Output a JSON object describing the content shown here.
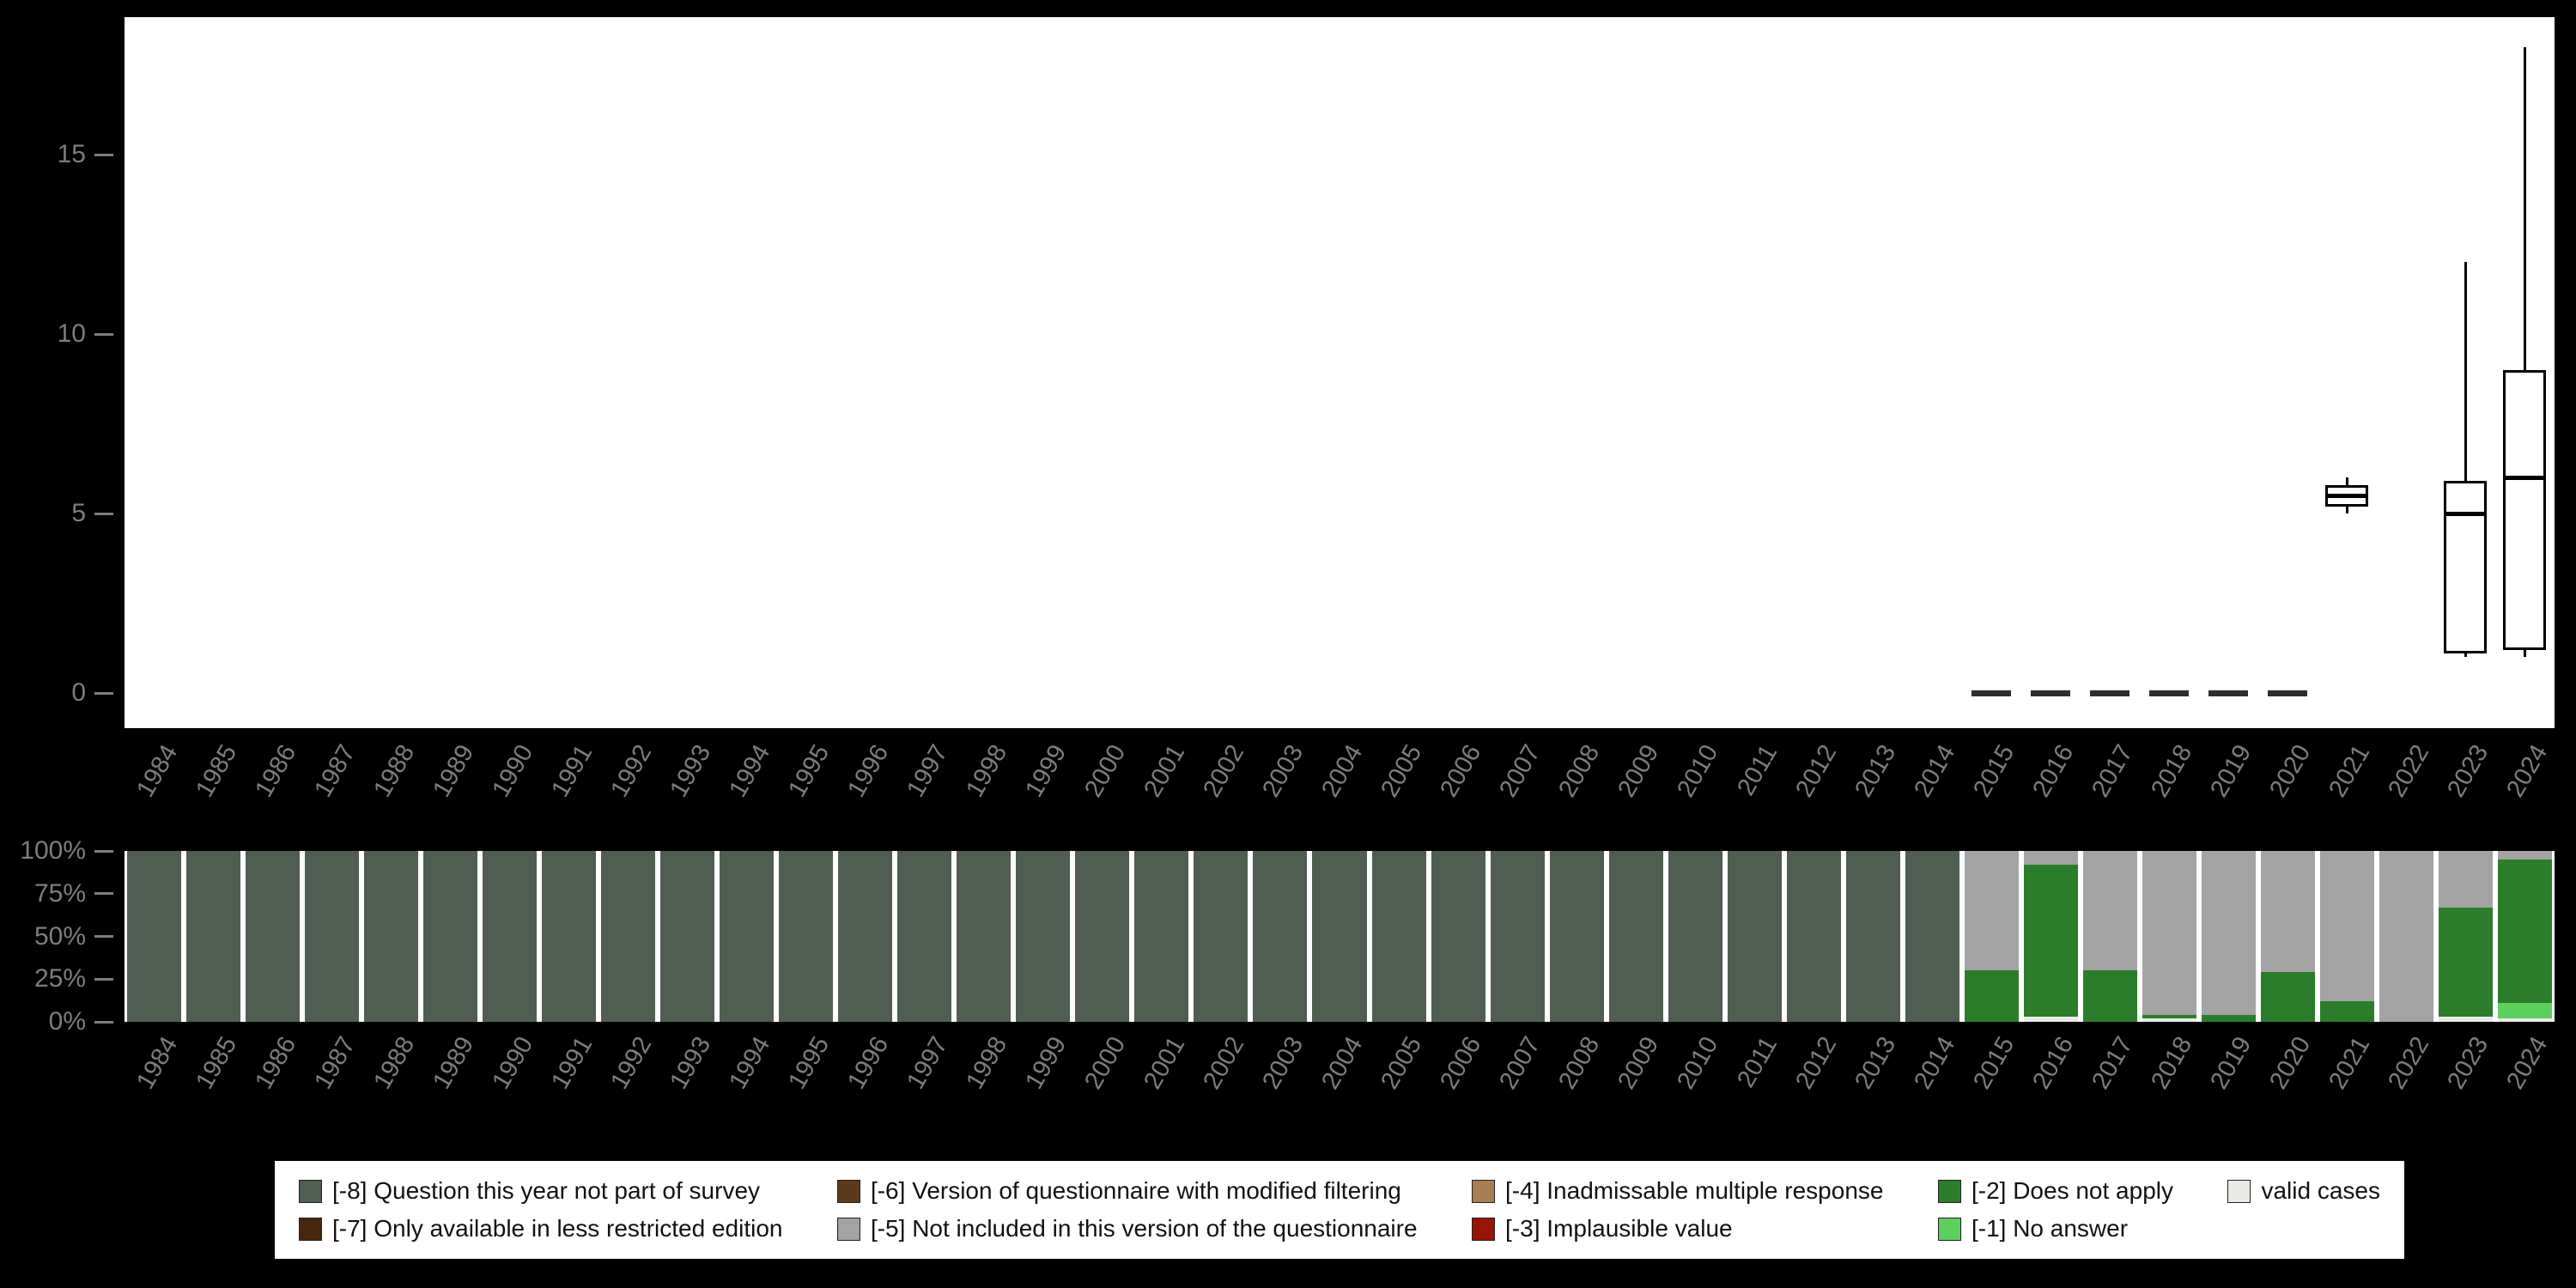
{
  "style": {
    "background": "#000000",
    "panel_background": "#ffffff",
    "axis_text_color": "#7d7d7d",
    "box_stroke": "#000000"
  },
  "colors": {
    "q8": "#4f5d53",
    "q7": "#47280e",
    "q6": "#5e3a1a",
    "q5": "#a3a3a3",
    "q4": "#a87f52",
    "q3": "#991408",
    "q2": "#2b7d2b",
    "q1": "#5ecf5e",
    "valid": "#e8eae6"
  },
  "legend": {
    "columns": [
      [
        {
          "key": "q8",
          "label": "[-8] Question this year not part of survey"
        },
        {
          "key": "q7",
          "label": "[-7] Only available in less restricted edition"
        }
      ],
      [
        {
          "key": "q6",
          "label": "[-6] Version of questionnaire with modified filtering"
        },
        {
          "key": "q5",
          "label": "[-5] Not included in this version of the questionnaire"
        }
      ],
      [
        {
          "key": "q4",
          "label": "[-4] Inadmissable multiple response"
        },
        {
          "key": "q3",
          "label": "[-3] Implausible value"
        }
      ],
      [
        {
          "key": "q2",
          "label": "[-2] Does not apply"
        },
        {
          "key": "q1",
          "label": "[-1] No answer"
        }
      ],
      [
        {
          "key": "valid",
          "label": "valid cases"
        }
      ]
    ]
  },
  "chart_data": [
    {
      "type": "boxplot",
      "title": "",
      "xlabel": "",
      "ylabel": "",
      "ylim": [
        0,
        18.8
      ],
      "yticks": [
        0,
        5,
        10,
        15
      ],
      "grid": false,
      "categories": [
        "1984",
        "1985",
        "1986",
        "1987",
        "1988",
        "1989",
        "1990",
        "1991",
        "1992",
        "1993",
        "1994",
        "1995",
        "1996",
        "1997",
        "1998",
        "1999",
        "2000",
        "2001",
        "2002",
        "2003",
        "2004",
        "2005",
        "2006",
        "2007",
        "2008",
        "2009",
        "2010",
        "2011",
        "2012",
        "2013",
        "2014",
        "2015",
        "2016",
        "2017",
        "2018",
        "2019",
        "2020",
        "2021",
        "2022",
        "2023",
        "2024"
      ],
      "boxes": [
        {
          "category": "2015",
          "min": 0,
          "q1": 0,
          "median": 0,
          "q3": 0,
          "max": 0
        },
        {
          "category": "2016",
          "min": 0,
          "q1": 0,
          "median": 0,
          "q3": 0,
          "max": 0
        },
        {
          "category": "2017",
          "min": 0,
          "q1": 0,
          "median": 0,
          "q3": 0,
          "max": 0
        },
        {
          "category": "2018",
          "min": 0,
          "q1": 0,
          "median": 0,
          "q3": 0,
          "max": 0
        },
        {
          "category": "2019",
          "min": 0,
          "q1": 0,
          "median": 0,
          "q3": 0,
          "max": 0
        },
        {
          "category": "2020",
          "min": 0,
          "q1": 0,
          "median": 0,
          "q3": 0,
          "max": 0
        },
        {
          "category": "2021",
          "min": 5.0,
          "q1": 5.2,
          "median": 5.5,
          "q3": 5.8,
          "max": 6.0
        },
        {
          "category": "2023",
          "min": 1.0,
          "q1": 1.1,
          "median": 5.0,
          "q3": 5.9,
          "max": 12.0
        },
        {
          "category": "2024",
          "min": 1.0,
          "q1": 1.2,
          "median": 6.0,
          "q3": 9.0,
          "max": 18.0
        }
      ]
    },
    {
      "type": "stacked-bar",
      "title": "",
      "unit": "percent",
      "yticks": [
        "100%",
        "75%",
        "50%",
        "25%",
        "0%"
      ],
      "segments_order": "bottom-up",
      "categories": [
        "1984",
        "1985",
        "1986",
        "1987",
        "1988",
        "1989",
        "1990",
        "1991",
        "1992",
        "1993",
        "1994",
        "1995",
        "1996",
        "1997",
        "1998",
        "1999",
        "2000",
        "2001",
        "2002",
        "2003",
        "2004",
        "2005",
        "2006",
        "2007",
        "2008",
        "2009",
        "2010",
        "2011",
        "2012",
        "2013",
        "2014",
        "2015",
        "2016",
        "2017",
        "2018",
        "2019",
        "2020",
        "2021",
        "2022",
        "2023",
        "2024"
      ],
      "bars": [
        {
          "category": "1984",
          "segments": [
            {
              "key": "q8",
              "pct": 100
            }
          ]
        },
        {
          "category": "1985",
          "segments": [
            {
              "key": "q8",
              "pct": 100
            }
          ]
        },
        {
          "category": "1986",
          "segments": [
            {
              "key": "q8",
              "pct": 100
            }
          ]
        },
        {
          "category": "1987",
          "segments": [
            {
              "key": "q8",
              "pct": 100
            }
          ]
        },
        {
          "category": "1988",
          "segments": [
            {
              "key": "q8",
              "pct": 100
            }
          ]
        },
        {
          "category": "1989",
          "segments": [
            {
              "key": "q8",
              "pct": 100
            }
          ]
        },
        {
          "category": "1990",
          "segments": [
            {
              "key": "q8",
              "pct": 100
            }
          ]
        },
        {
          "category": "1991",
          "segments": [
            {
              "key": "q8",
              "pct": 100
            }
          ]
        },
        {
          "category": "1992",
          "segments": [
            {
              "key": "q8",
              "pct": 100
            }
          ]
        },
        {
          "category": "1993",
          "segments": [
            {
              "key": "q8",
              "pct": 100
            }
          ]
        },
        {
          "category": "1994",
          "segments": [
            {
              "key": "q8",
              "pct": 100
            }
          ]
        },
        {
          "category": "1995",
          "segments": [
            {
              "key": "q8",
              "pct": 100
            }
          ]
        },
        {
          "category": "1996",
          "segments": [
            {
              "key": "q8",
              "pct": 100
            }
          ]
        },
        {
          "category": "1997",
          "segments": [
            {
              "key": "q8",
              "pct": 100
            }
          ]
        },
        {
          "category": "1998",
          "segments": [
            {
              "key": "q8",
              "pct": 100
            }
          ]
        },
        {
          "category": "1999",
          "segments": [
            {
              "key": "q8",
              "pct": 100
            }
          ]
        },
        {
          "category": "2000",
          "segments": [
            {
              "key": "q8",
              "pct": 100
            }
          ]
        },
        {
          "category": "2001",
          "segments": [
            {
              "key": "q8",
              "pct": 100
            }
          ]
        },
        {
          "category": "2002",
          "segments": [
            {
              "key": "q8",
              "pct": 100
            }
          ]
        },
        {
          "category": "2003",
          "segments": [
            {
              "key": "q8",
              "pct": 100
            }
          ]
        },
        {
          "category": "2004",
          "segments": [
            {
              "key": "q8",
              "pct": 100
            }
          ]
        },
        {
          "category": "2005",
          "segments": [
            {
              "key": "q8",
              "pct": 100
            }
          ]
        },
        {
          "category": "2006",
          "segments": [
            {
              "key": "q8",
              "pct": 100
            }
          ]
        },
        {
          "category": "2007",
          "segments": [
            {
              "key": "q8",
              "pct": 100
            }
          ]
        },
        {
          "category": "2008",
          "segments": [
            {
              "key": "q8",
              "pct": 100
            }
          ]
        },
        {
          "category": "2009",
          "segments": [
            {
              "key": "q8",
              "pct": 100
            }
          ]
        },
        {
          "category": "2010",
          "segments": [
            {
              "key": "q8",
              "pct": 100
            }
          ]
        },
        {
          "category": "2011",
          "segments": [
            {
              "key": "q8",
              "pct": 100
            }
          ]
        },
        {
          "category": "2012",
          "segments": [
            {
              "key": "q8",
              "pct": 100
            }
          ]
        },
        {
          "category": "2013",
          "segments": [
            {
              "key": "q8",
              "pct": 100
            }
          ]
        },
        {
          "category": "2014",
          "segments": [
            {
              "key": "q8",
              "pct": 100
            }
          ]
        },
        {
          "category": "2015",
          "segments": [
            {
              "key": "q2",
              "pct": 30
            },
            {
              "key": "q5",
              "pct": 70
            }
          ]
        },
        {
          "category": "2016",
          "segments": [
            {
              "key": "valid",
              "pct": 3
            },
            {
              "key": "q2",
              "pct": 89
            },
            {
              "key": "q5",
              "pct": 8
            }
          ]
        },
        {
          "category": "2017",
          "segments": [
            {
              "key": "q2",
              "pct": 30
            },
            {
              "key": "q5",
              "pct": 70
            }
          ]
        },
        {
          "category": "2018",
          "segments": [
            {
              "key": "valid",
              "pct": 2
            },
            {
              "key": "q2",
              "pct": 2
            },
            {
              "key": "q5",
              "pct": 96
            }
          ]
        },
        {
          "category": "2019",
          "segments": [
            {
              "key": "q2",
              "pct": 4
            },
            {
              "key": "q5",
              "pct": 96
            }
          ]
        },
        {
          "category": "2020",
          "segments": [
            {
              "key": "q2",
              "pct": 29
            },
            {
              "key": "q5",
              "pct": 71
            }
          ]
        },
        {
          "category": "2021",
          "segments": [
            {
              "key": "q2",
              "pct": 12
            },
            {
              "key": "q5",
              "pct": 88
            }
          ]
        },
        {
          "category": "2022",
          "segments": [
            {
              "key": "q5",
              "pct": 100
            }
          ]
        },
        {
          "category": "2023",
          "segments": [
            {
              "key": "valid",
              "pct": 3
            },
            {
              "key": "q2",
              "pct": 64
            },
            {
              "key": "q5",
              "pct": 33
            }
          ]
        },
        {
          "category": "2024",
          "segments": [
            {
              "key": "valid",
              "pct": 2
            },
            {
              "key": "q1",
              "pct": 9
            },
            {
              "key": "q2",
              "pct": 84
            },
            {
              "key": "q5",
              "pct": 5
            }
          ]
        }
      ]
    }
  ]
}
